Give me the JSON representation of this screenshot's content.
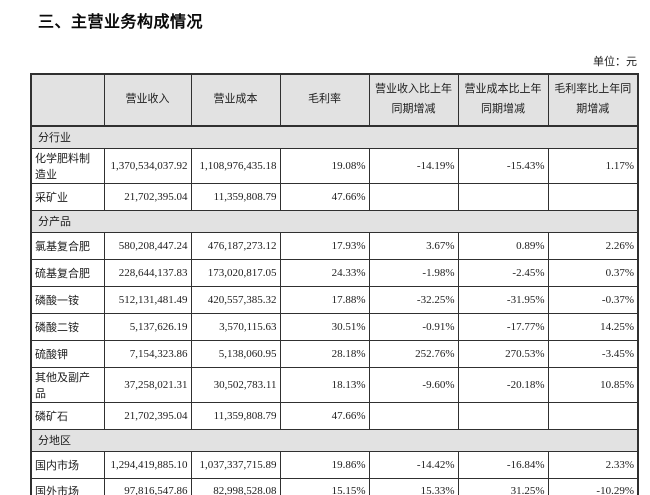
{
  "page": {
    "title": "三、主营业务构成情况",
    "unit_label": "单位：元"
  },
  "colors": {
    "band_bg": "#e2e2e2",
    "border": "#303030",
    "text": "#1c1c1c",
    "page_bg": "#ffffff"
  },
  "table": {
    "columns": [
      "",
      "营业收入",
      "营业成本",
      "毛利率",
      "营业收入比上年同期增减",
      "营业成本比上年同期增减",
      "毛利率比上年同期增减"
    ],
    "column_keys": [
      "label",
      "revenue",
      "cost",
      "gross-margin",
      "revenue-yoy-change",
      "cost-yoy-change",
      "margin-yoy-change"
    ],
    "sections": [
      {
        "header": "分行业",
        "rows": [
          {
            "label": "化学肥料制造业",
            "values": [
              "1,370,534,037.92",
              "1,108,976,435.18",
              "19.08%",
              "-14.19%",
              "-15.43%",
              "1.17%"
            ]
          },
          {
            "label": "采矿业",
            "values": [
              "21,702,395.04",
              "11,359,808.79",
              "47.66%",
              "",
              "",
              ""
            ]
          }
        ]
      },
      {
        "header": "分产品",
        "rows": [
          {
            "label": "氯基复合肥",
            "values": [
              "580,208,447.24",
              "476,187,273.12",
              "17.93%",
              "3.67%",
              "0.89%",
              "2.26%"
            ]
          },
          {
            "label": "硫基复合肥",
            "values": [
              "228,644,137.83",
              "173,020,817.05",
              "24.33%",
              "-1.98%",
              "-2.45%",
              "0.37%"
            ]
          },
          {
            "label": "磷酸一铵",
            "values": [
              "512,131,481.49",
              "420,557,385.32",
              "17.88%",
              "-32.25%",
              "-31.95%",
              "-0.37%"
            ]
          },
          {
            "label": "磷酸二铵",
            "values": [
              "5,137,626.19",
              "3,570,115.63",
              "30.51%",
              "-0.91%",
              "-17.77%",
              "14.25%"
            ]
          },
          {
            "label": "硫酸钾",
            "values": [
              "7,154,323.86",
              "5,138,060.95",
              "28.18%",
              "252.76%",
              "270.53%",
              "-3.45%"
            ]
          },
          {
            "label": "其他及副产品",
            "values": [
              "37,258,021.31",
              "30,502,783.11",
              "18.13%",
              "-9.60%",
              "-20.18%",
              "10.85%"
            ]
          },
          {
            "label": "磷矿石",
            "values": [
              "21,702,395.04",
              "11,359,808.79",
              "47.66%",
              "",
              "",
              ""
            ]
          }
        ]
      },
      {
        "header": "分地区",
        "rows": [
          {
            "label": "国内市场",
            "values": [
              "1,294,419,885.10",
              "1,037,337,715.89",
              "19.86%",
              "-14.42%",
              "-16.84%",
              "2.33%"
            ]
          },
          {
            "label": "国外市场",
            "values": [
              "97,816,547.86",
              "82,998,528.08",
              "15.15%",
              "15.33%",
              "31.25%",
              "-10.29%"
            ]
          }
        ]
      }
    ]
  }
}
